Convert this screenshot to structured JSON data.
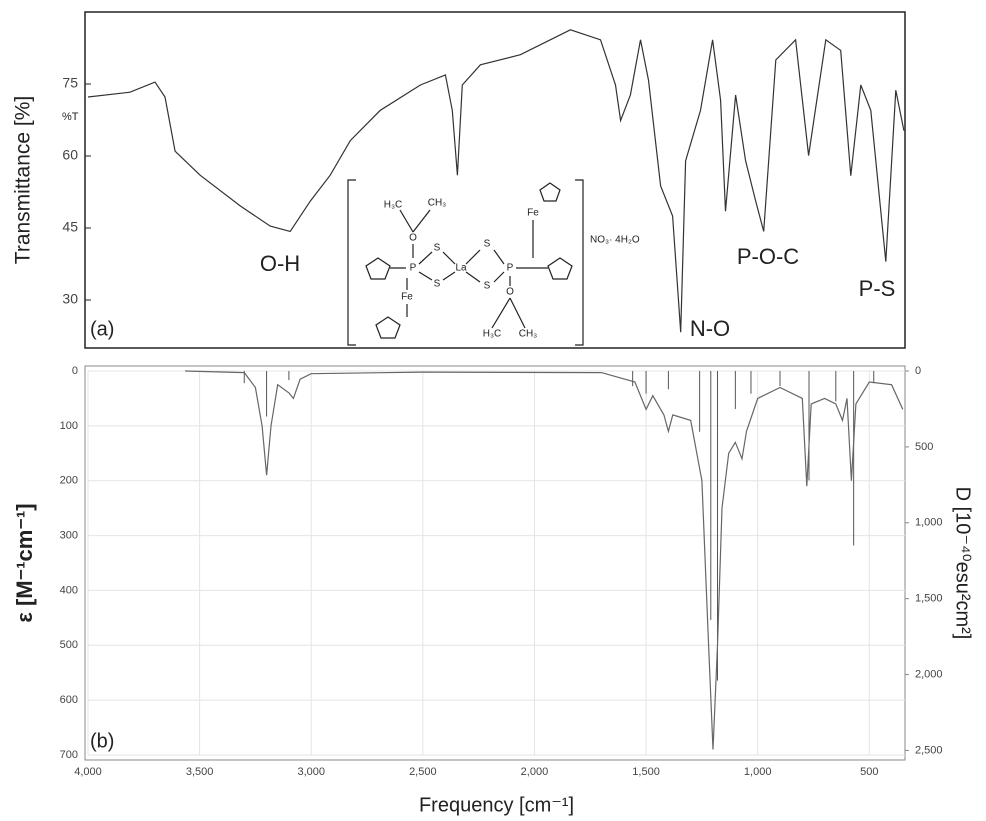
{
  "chart_data": [
    {
      "type": "line",
      "panel_label": "(a)",
      "y_label": "Transmittance [%]",
      "y_unit_label": "%T",
      "xlim": [
        4000,
        340
      ],
      "ylim": [
        20,
        90
      ],
      "yticks": [
        30,
        45,
        60,
        75
      ],
      "grid": false,
      "color": "#333333",
      "x": [
        4000,
        3812,
        3700,
        3655,
        3610,
        3498,
        3318,
        3184,
        3094,
        3004,
        2915,
        2825,
        2691,
        2511,
        2399,
        2368,
        2345,
        2323,
        2242,
        2063,
        1839,
        1704,
        1637,
        1614,
        1570,
        1525,
        1489,
        1435,
        1381,
        1345,
        1323,
        1256,
        1202,
        1166,
        1144,
        1099,
        1054,
        1009,
        973,
        919,
        830,
        772,
        695,
        628,
        583,
        538,
        493,
        426,
        381,
        345
      ],
      "values": [
        72.3,
        73.3,
        75.4,
        72.3,
        61,
        56,
        49.6,
        45.4,
        44.3,
        50.6,
        56,
        63.2,
        69.5,
        74.8,
        76.9,
        69.5,
        56,
        74.8,
        79,
        81.1,
        86.3,
        84.2,
        74.8,
        67.4,
        72.7,
        84.2,
        75.8,
        53.8,
        47.5,
        23.3,
        59,
        69.5,
        84.2,
        71.6,
        48.5,
        72.7,
        59,
        50.6,
        44.3,
        80,
        84.2,
        60.1,
        84.2,
        82,
        55.9,
        74.8,
        69.5,
        38,
        73.7,
        65.3
      ],
      "annotations": [
        "O-H",
        "N-O",
        "P-O-C",
        "P-S"
      ]
    },
    {
      "type": "line",
      "panel_label": "(b)",
      "x_label": "Frequency [cm⁻¹]",
      "y_label": "ε [M⁻¹cm⁻¹]",
      "y2_label": "D [10⁻⁴⁰esu²cm²]",
      "xlim": [
        4000,
        340
      ],
      "ylim": [
        0,
        700
      ],
      "y2lim": [
        0,
        2530
      ],
      "y_inverted": true,
      "grid": true,
      "color": "#666666",
      "xticks": [
        {
          "value": 4000,
          "label": "4,000"
        },
        {
          "value": 3500,
          "label": "3,500"
        },
        {
          "value": 3000,
          "label": "3,000"
        },
        {
          "value": 2500,
          "label": "2,500"
        },
        {
          "value": 2000,
          "label": "2,000"
        },
        {
          "value": 1500,
          "label": "1,500"
        },
        {
          "value": 1000,
          "label": "1,000"
        },
        500
      ],
      "yticks": [
        0,
        100,
        200,
        300,
        400,
        500,
        600,
        700
      ],
      "y2ticks": [
        0,
        500,
        {
          "value": 1000,
          "label": "1,000"
        },
        {
          "value": 1500,
          "label": "1,500"
        },
        {
          "value": 2000,
          "label": "2,000"
        },
        {
          "value": 2500,
          "label": "2,500"
        }
      ],
      "x": [
        3565,
        3300,
        3250,
        3220,
        3200,
        3180,
        3150,
        3100,
        3080,
        3050,
        3000,
        2500,
        1700,
        1550,
        1500,
        1470,
        1420,
        1400,
        1380,
        1300,
        1250,
        1220,
        1200,
        1180,
        1160,
        1130,
        1100,
        1070,
        1050,
        1000,
        900,
        800,
        780,
        760,
        700,
        650,
        620,
        600,
        580,
        560,
        500,
        400,
        350
      ],
      "values": [
        0,
        3,
        30,
        100,
        190,
        100,
        25,
        40,
        50,
        15,
        5,
        2,
        3,
        20,
        70,
        45,
        80,
        110,
        80,
        90,
        200,
        500,
        690,
        500,
        250,
        150,
        130,
        160,
        110,
        50,
        30,
        50,
        210,
        60,
        50,
        60,
        90,
        50,
        200,
        60,
        20,
        25,
        70
      ],
      "sticks": {
        "axis": "y2",
        "color": "#555555",
        "x": [
          3300,
          3200,
          3100,
          1560,
          1500,
          1400,
          1260,
          1210,
          1180,
          1100,
          1030,
          900,
          770,
          650,
          570,
          480
        ],
        "values": [
          80,
          300,
          60,
          100,
          150,
          120,
          400,
          1640,
          2040,
          250,
          150,
          100,
          720,
          200,
          1150,
          80
        ]
      }
    }
  ],
  "structure": {
    "labels": [
      "H₃C",
      "CH₃",
      "O",
      "P",
      "S",
      "S",
      "La",
      "S",
      "S",
      "P",
      "O",
      "Fe",
      "Fe",
      "H₃C",
      "CH₃",
      "NO₃· 4H₂O"
    ]
  }
}
